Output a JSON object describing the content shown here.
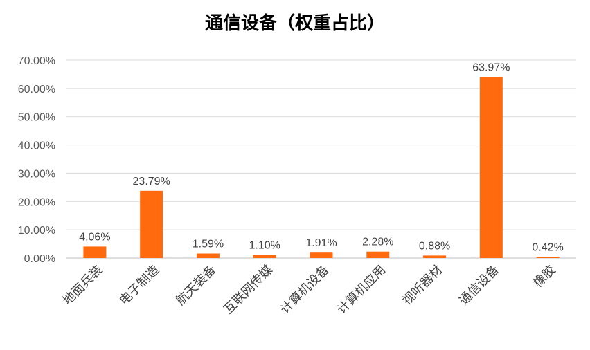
{
  "chart_data": {
    "type": "bar",
    "title": "通信设备（权重占比）",
    "xlabel": "",
    "ylabel": "",
    "categories": [
      "地面兵装",
      "电子制造",
      "航天装备",
      "互联网传媒",
      "计算机设备",
      "计算机应用",
      "视听器材",
      "通信设备",
      "橡胶"
    ],
    "values": [
      4.06,
      23.79,
      1.59,
      1.1,
      1.91,
      2.28,
      0.88,
      63.97,
      0.42
    ],
    "data_labels": [
      "4.06%",
      "23.79%",
      "1.59%",
      "1.10%",
      "1.91%",
      "2.28%",
      "0.88%",
      "63.97%",
      "0.42%"
    ],
    "ylim": [
      0,
      70
    ],
    "yticks": [
      0,
      10,
      20,
      30,
      40,
      50,
      60,
      70
    ],
    "ytick_labels": [
      "0.00%",
      "10.00%",
      "20.00%",
      "30.00%",
      "40.00%",
      "50.00%",
      "60.00%",
      "70.00%"
    ],
    "bar_color": "#FF6A0F",
    "grid": true,
    "legend": "none"
  }
}
